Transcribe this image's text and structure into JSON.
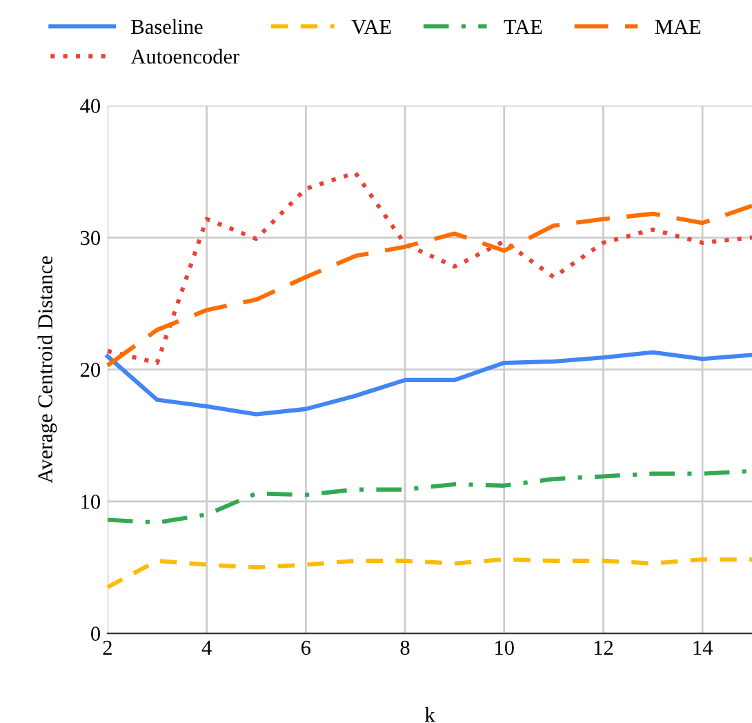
{
  "chart_data": {
    "type": "line",
    "xlabel": "k",
    "ylabel": "Average Centroid Distance",
    "x": [
      2,
      3,
      4,
      5,
      6,
      7,
      8,
      9,
      10,
      11,
      12,
      13,
      14,
      15
    ],
    "series": [
      {
        "name": "Baseline",
        "color": "#4285f4",
        "line_style": "solid",
        "values": [
          21.0,
          17.7,
          17.2,
          16.6,
          17.0,
          18.0,
          19.2,
          19.2,
          20.5,
          20.6,
          20.9,
          21.3,
          20.8,
          21.1
        ]
      },
      {
        "name": "Autoencoder",
        "color": "#ea4335",
        "line_style": "dotted",
        "values": [
          21.4,
          20.5,
          31.4,
          29.9,
          33.7,
          34.9,
          29.5,
          27.8,
          29.7,
          27.0,
          29.6,
          30.6,
          29.6,
          30.0
        ]
      },
      {
        "name": "VAE",
        "color": "#fbbc04",
        "line_style": "dashed",
        "values": [
          3.5,
          5.5,
          5.2,
          5.0,
          5.2,
          5.5,
          5.5,
          5.3,
          5.6,
          5.5,
          5.5,
          5.3,
          5.6,
          5.6
        ]
      },
      {
        "name": "TAE",
        "color": "#34a853",
        "line_style": "dashdot",
        "values": [
          8.6,
          8.4,
          9.0,
          10.6,
          10.5,
          10.9,
          10.9,
          11.3,
          11.2,
          11.7,
          11.9,
          12.1,
          12.1,
          12.3
        ]
      },
      {
        "name": "MAE",
        "color": "#ff6d01",
        "line_style": "longdash",
        "values": [
          20.3,
          23.0,
          24.5,
          25.3,
          27.0,
          28.6,
          29.3,
          30.3,
          29.0,
          30.9,
          31.4,
          31.8,
          31.1,
          32.4
        ]
      }
    ],
    "xlim": [
      2,
      15
    ],
    "xticks": [
      2,
      4,
      6,
      8,
      10,
      12,
      14
    ],
    "ylim": [
      0,
      40
    ],
    "yticks": [
      0,
      10,
      20,
      30,
      40
    ],
    "grid": true,
    "legend": "top",
    "marker": "none"
  }
}
